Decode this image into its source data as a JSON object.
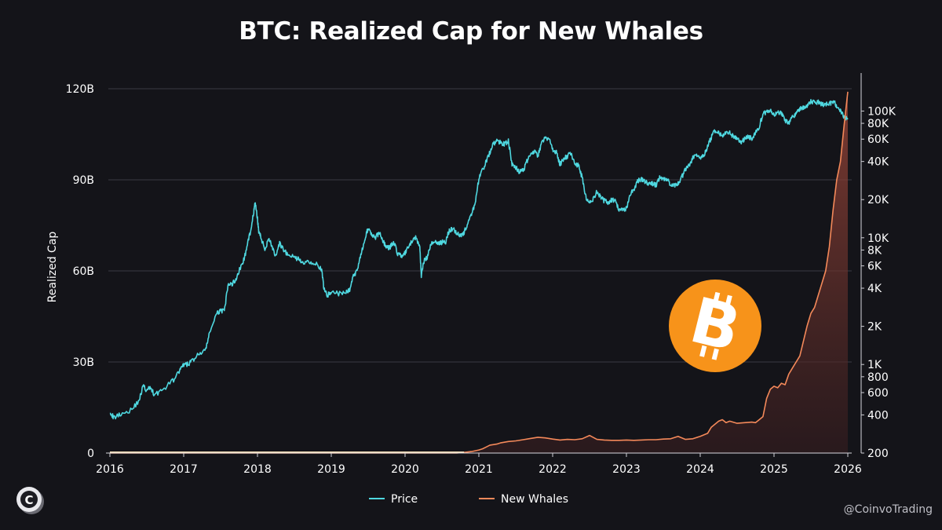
{
  "chart_data": {
    "type": "line",
    "title": "BTC: Realized Cap for New Whales",
    "ylabel": "Realized Cap",
    "ylim": [
      0,
      120000000000
    ],
    "y_ticks": [
      "0",
      "30B",
      "60B",
      "90B",
      "120B"
    ],
    "y2_scale": "log",
    "y2lim": [
      200,
      150000
    ],
    "y2_ticks": [
      {
        "label": "200",
        "value": 200
      },
      {
        "label": "400",
        "value": 400
      },
      {
        "label": "600",
        "value": 600
      },
      {
        "label": "800",
        "value": 800
      },
      {
        "label": "1K",
        "value": 1000
      },
      {
        "label": "2K",
        "value": 2000
      },
      {
        "label": "4K",
        "value": 4000
      },
      {
        "label": "6K",
        "value": 6000
      },
      {
        "label": "8K",
        "value": 8000
      },
      {
        "label": "10K",
        "value": 10000
      },
      {
        "label": "20K",
        "value": 20000
      },
      {
        "label": "40K",
        "value": 40000
      },
      {
        "label": "60K",
        "value": 60000
      },
      {
        "label": "80K",
        "value": 80000
      },
      {
        "label": "100K",
        "value": 100000
      }
    ],
    "x_ticks": [
      "2016",
      "2017",
      "2018",
      "2019",
      "2020",
      "2021",
      "2022",
      "2023",
      "2024",
      "2025",
      "2026"
    ],
    "xlim": [
      2016.0,
      2026.0
    ],
    "grid": true,
    "legend_position": "bottom",
    "series": [
      {
        "name": "Price",
        "axis": "right",
        "color": "#4fd8e0",
        "x": [
          2016.0,
          2016.05,
          2016.15,
          2016.3,
          2016.4,
          2016.45,
          2016.5,
          2016.55,
          2016.6,
          2016.7,
          2016.85,
          2016.95,
          2017.0,
          2017.05,
          2017.1,
          2017.2,
          2017.3,
          2017.35,
          2017.45,
          2017.5,
          2017.55,
          2017.6,
          2017.65,
          2017.7,
          2017.75,
          2017.8,
          2017.85,
          2017.9,
          2017.95,
          2017.97,
          2018.0,
          2018.02,
          2018.05,
          2018.1,
          2018.15,
          2018.2,
          2018.25,
          2018.3,
          2018.35,
          2018.4,
          2018.5,
          2018.55,
          2018.6,
          2018.7,
          2018.8,
          2018.87,
          2018.9,
          2018.95,
          2019.0,
          2019.1,
          2019.2,
          2019.25,
          2019.3,
          2019.35,
          2019.4,
          2019.45,
          2019.48,
          2019.5,
          2019.55,
          2019.6,
          2019.65,
          2019.7,
          2019.75,
          2019.8,
          2019.85,
          2019.9,
          2019.95,
          2020.0,
          2020.05,
          2020.1,
          2020.15,
          2020.2,
          2020.22,
          2020.25,
          2020.3,
          2020.35,
          2020.4,
          2020.45,
          2020.5,
          2020.55,
          2020.6,
          2020.65,
          2020.7,
          2020.75,
          2020.8,
          2020.85,
          2020.9,
          2020.95,
          2021.0,
          2021.05,
          2021.1,
          2021.15,
          2021.2,
          2021.25,
          2021.3,
          2021.35,
          2021.4,
          2021.45,
          2021.5,
          2021.55,
          2021.6,
          2021.65,
          2021.7,
          2021.75,
          2021.8,
          2021.85,
          2021.9,
          2021.95,
          2022.0,
          2022.05,
          2022.1,
          2022.15,
          2022.2,
          2022.25,
          2022.3,
          2022.35,
          2022.4,
          2022.45,
          2022.5,
          2022.55,
          2022.6,
          2022.65,
          2022.7,
          2022.75,
          2022.8,
          2022.85,
          2022.9,
          2022.95,
          2023.0,
          2023.05,
          2023.1,
          2023.15,
          2023.2,
          2023.25,
          2023.3,
          2023.35,
          2023.4,
          2023.45,
          2023.5,
          2023.55,
          2023.6,
          2023.65,
          2023.7,
          2023.75,
          2023.8,
          2023.85,
          2023.9,
          2023.95,
          2024.0,
          2024.05,
          2024.1,
          2024.15,
          2024.2,
          2024.25,
          2024.3,
          2024.35,
          2024.4,
          2024.45,
          2024.5,
          2024.55,
          2024.6,
          2024.65,
          2024.7,
          2024.75,
          2024.8,
          2024.85,
          2024.9,
          2024.95,
          2025.0,
          2025.05,
          2025.1,
          2025.15,
          2025.2,
          2025.25,
          2025.3,
          2025.35,
          2025.4,
          2025.45,
          2025.5,
          2025.55,
          2025.6,
          2025.65,
          2025.7,
          2025.75,
          2025.8,
          2025.85,
          2025.9,
          2025.95,
          2026.0
        ],
        "values": [
          430,
          380,
          410,
          440,
          530,
          680,
          620,
          660,
          580,
          620,
          740,
          900,
          990,
          1000,
          1050,
          1200,
          1300,
          1800,
          2500,
          2700,
          2600,
          4200,
          4300,
          4600,
          5500,
          6300,
          8000,
          11000,
          16000,
          19000,
          14000,
          11000,
          10000,
          8000,
          10000,
          8500,
          7000,
          9000,
          8000,
          7500,
          7000,
          6800,
          6400,
          6500,
          6300,
          5500,
          4000,
          3500,
          3800,
          3600,
          3700,
          3900,
          5000,
          5500,
          7500,
          9000,
          11000,
          12000,
          10500,
          10000,
          11000,
          9500,
          8300,
          8500,
          9200,
          7500,
          7200,
          7500,
          8500,
          9500,
          10000,
          8500,
          5000,
          6500,
          7000,
          8800,
          9500,
          9000,
          9200,
          9300,
          11500,
          11800,
          11000,
          10500,
          11000,
          13000,
          15000,
          19000,
          29000,
          34000,
          40000,
          47000,
          55000,
          58000,
          56000,
          55000,
          58000,
          38000,
          36000,
          33000,
          34000,
          40000,
          47000,
          48000,
          44000,
          55000,
          62000,
          60000,
          50000,
          47000,
          38000,
          42000,
          44000,
          47000,
          38000,
          37000,
          30000,
          21000,
          19000,
          20000,
          23000,
          21000,
          19500,
          19000,
          20000,
          19500,
          16500,
          16800,
          17000,
          22000,
          24000,
          28000,
          29000,
          28000,
          27000,
          27000,
          26000,
          30000,
          29000,
          29000,
          26000,
          26000,
          27000,
          30000,
          35000,
          37000,
          43000,
          44000,
          42000,
          45000,
          52000,
          62000,
          70000,
          68000,
          64000,
          66000,
          67000,
          63000,
          61000,
          57000,
          60000,
          62000,
          61000,
          68000,
          75000,
          95000,
          98000,
          100000,
          94000,
          96000,
          97000,
          84000,
          80000,
          90000,
          95000,
          105000,
          106000,
          108000,
          118000,
          119000,
          117000,
          113000,
          112000,
          114000,
          120000,
          110000,
          100000,
          90000,
          86000
        ],
        "description_note": ""
      },
      {
        "name": "New Whales",
        "axis": "left",
        "color": "#f4895a",
        "x": [
          2016.0,
          2020.7,
          2020.8,
          2020.9,
          2021.0,
          2021.05,
          2021.1,
          2021.15,
          2021.2,
          2021.25,
          2021.3,
          2021.4,
          2021.5,
          2021.6,
          2021.7,
          2021.8,
          2021.9,
          2022.0,
          2022.1,
          2022.2,
          2022.3,
          2022.4,
          2022.5,
          2022.6,
          2022.7,
          2022.8,
          2022.9,
          2023.0,
          2023.1,
          2023.2,
          2023.3,
          2023.4,
          2023.5,
          2023.6,
          2023.7,
          2023.8,
          2023.9,
          2024.0,
          2024.1,
          2024.15,
          2024.2,
          2024.25,
          2024.3,
          2024.35,
          2024.4,
          2024.5,
          2024.6,
          2024.7,
          2024.75,
          2024.8,
          2024.85,
          2024.9,
          2024.95,
          2025.0,
          2025.05,
          2025.1,
          2025.15,
          2025.2,
          2025.25,
          2025.3,
          2025.35,
          2025.4,
          2025.45,
          2025.5,
          2025.55,
          2025.6,
          2025.65,
          2025.7,
          2025.75,
          2025.8,
          2025.85,
          2025.9,
          2025.95,
          2026.0
        ],
        "values": [
          0,
          0,
          0.2,
          0.5,
          1.0,
          1.4,
          2.0,
          2.6,
          2.8,
          3.0,
          3.4,
          3.8,
          4.0,
          4.4,
          4.8,
          5.2,
          5.0,
          4.6,
          4.3,
          4.5,
          4.4,
          4.7,
          5.8,
          4.5,
          4.3,
          4.2,
          4.2,
          4.3,
          4.2,
          4.3,
          4.4,
          4.4,
          4.6,
          4.7,
          5.5,
          4.5,
          4.7,
          5.5,
          6.5,
          8.5,
          9.5,
          10.5,
          11.0,
          10.0,
          10.5,
          9.8,
          10.0,
          10.2,
          10.0,
          11.0,
          12.0,
          18.0,
          21.0,
          22.0,
          21.5,
          23.0,
          22.5,
          26.0,
          28.0,
          30.0,
          32.0,
          37.0,
          42.0,
          46.0,
          48.0,
          52.0,
          56.0,
          60.0,
          68.0,
          80.0,
          90.0,
          96.0,
          108.0,
          119.0
        ],
        "value_unit": "B"
      }
    ]
  },
  "watermark": "@CoinvoTrading",
  "colors": {
    "background": "#141419",
    "price_line": "#4fd8e0",
    "whales_line": "#f4895a",
    "bitcoin_orange": "#f7931a",
    "grid": "#3a3a42"
  },
  "icons": [
    "bitcoin-logo-icon",
    "coinvo-logo-icon"
  ]
}
